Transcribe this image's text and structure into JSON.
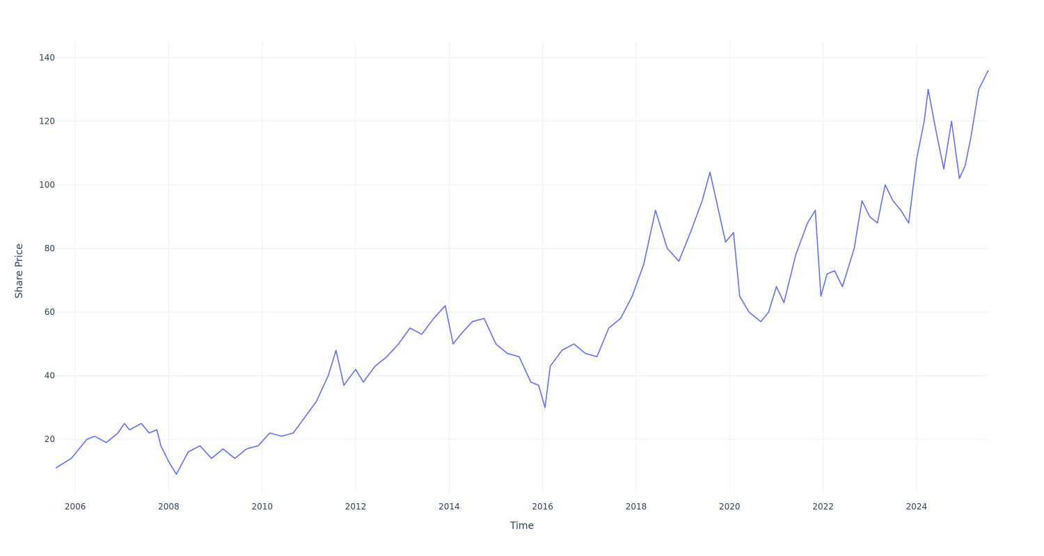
{
  "chart_data": {
    "type": "line",
    "title": "",
    "xlabel": "Time",
    "ylabel": "Share Price",
    "x_tick_labels": [
      "2006",
      "2008",
      "2010",
      "2012",
      "2014",
      "2016",
      "2018",
      "2020",
      "2022",
      "2024"
    ],
    "y_tick_labels": [
      "20",
      "40",
      "60",
      "80",
      "100",
      "120",
      "140"
    ],
    "xlim": [
      "2005-08-01",
      "2025-07-15"
    ],
    "ylim": [
      3,
      145
    ],
    "grid": true,
    "legend": "none",
    "line_color": "#636efa",
    "series": [
      {
        "x": [
          "2005-08-01",
          "2005-12-01",
          "2006-04-01",
          "2006-06-01",
          "2006-09-01",
          "2006-12-01",
          "2007-01-20",
          "2007-03-01",
          "2007-06-01",
          "2007-08-01",
          "2007-10-01",
          "2007-11-01",
          "2008-01-01",
          "2008-03-01",
          "2008-06-01",
          "2008-09-01",
          "2008-12-01",
          "2009-03-01",
          "2009-06-01",
          "2009-09-01",
          "2009-12-01",
          "2010-03-01",
          "2010-06-01",
          "2010-09-01",
          "2010-12-01",
          "2011-03-01",
          "2011-06-01",
          "2011-08-01",
          "2011-10-01",
          "2012-01-01",
          "2012-03-01",
          "2012-06-01",
          "2012-09-01",
          "2012-12-01",
          "2013-03-01",
          "2013-06-01",
          "2013-09-01",
          "2013-12-01",
          "2014-02-01",
          "2014-04-01",
          "2014-07-01",
          "2014-10-01",
          "2015-01-01",
          "2015-04-01",
          "2015-07-01",
          "2015-10-01",
          "2015-12-01",
          "2016-01-20",
          "2016-03-01",
          "2016-06-01",
          "2016-09-01",
          "2016-12-01",
          "2017-03-01",
          "2017-06-01",
          "2017-09-01",
          "2017-12-01",
          "2018-03-01",
          "2018-06-01",
          "2018-09-01",
          "2018-12-01",
          "2019-03-01",
          "2019-06-01",
          "2019-08-01",
          "2019-10-01",
          "2019-12-01",
          "2020-02-01",
          "2020-03-20",
          "2020-06-01",
          "2020-09-01",
          "2020-11-01",
          "2021-01-01",
          "2021-03-01",
          "2021-06-01",
          "2021-09-01",
          "2021-11-01",
          "2021-12-15",
          "2022-02-01",
          "2022-04-01",
          "2022-06-01",
          "2022-09-01",
          "2022-11-01",
          "2023-01-01",
          "2023-03-01",
          "2023-05-01",
          "2023-07-01",
          "2023-09-01",
          "2023-11-01",
          "2024-01-01",
          "2024-03-01",
          "2024-04-01",
          "2024-06-01",
          "2024-08-01",
          "2024-10-01",
          "2024-12-01",
          "2025-01-15",
          "2025-03-01",
          "2025-05-01",
          "2025-07-15"
        ],
        "y": [
          11,
          14,
          20,
          21,
          19,
          22,
          25,
          23,
          25,
          22,
          23,
          18,
          13,
          9,
          16,
          18,
          14,
          17,
          14,
          17,
          18,
          22,
          21,
          22,
          27,
          32,
          40,
          48,
          37,
          42,
          38,
          43,
          46,
          50,
          55,
          53,
          58,
          62,
          50,
          53,
          57,
          58,
          50,
          47,
          46,
          38,
          37,
          30,
          43,
          48,
          50,
          47,
          46,
          55,
          58,
          65,
          75,
          92,
          80,
          76,
          85,
          95,
          104,
          93,
          82,
          85,
          65,
          60,
          57,
          60,
          68,
          63,
          78,
          88,
          92,
          65,
          72,
          73,
          68,
          80,
          95,
          90,
          88,
          100,
          95,
          92,
          88,
          108,
          120,
          130,
          117,
          105,
          120,
          102,
          106,
          115,
          130,
          136
        ]
      }
    ]
  }
}
